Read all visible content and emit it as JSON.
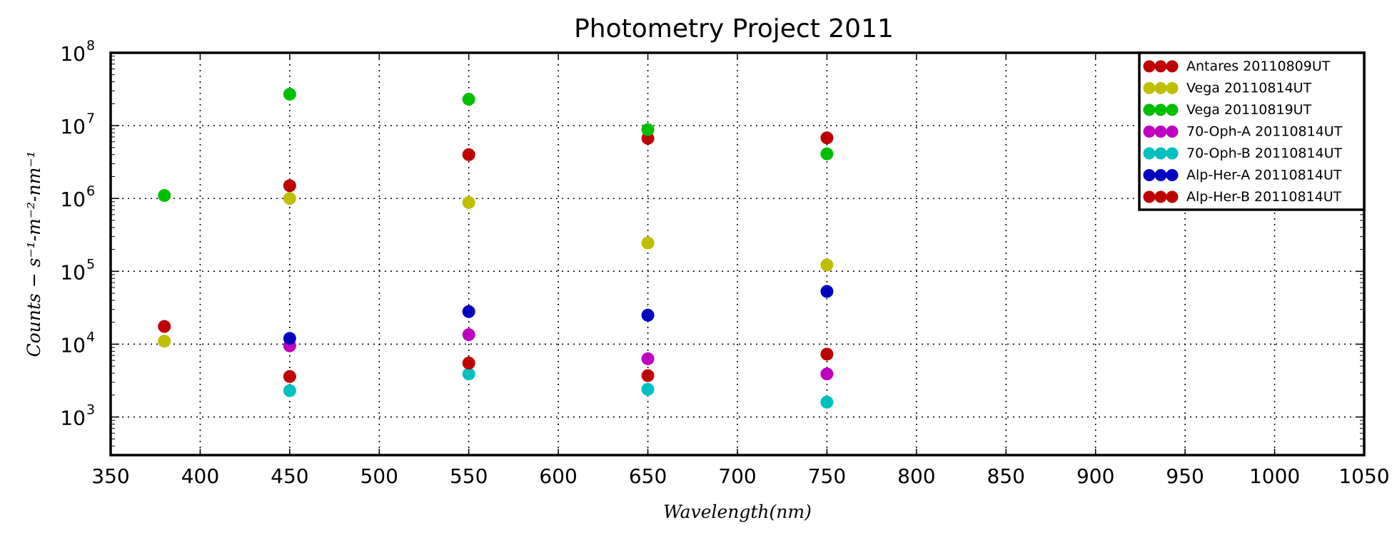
{
  "chart_data": {
    "type": "scatter",
    "title": "Photometry Project 2011",
    "xlabel": "Wavelength(nm)",
    "ylabel": "Counts − s⁻¹-m⁻²-nm⁻¹",
    "xlim": [
      350,
      1050
    ],
    "ylim": [
      300,
      100000000
    ],
    "yscale": "log",
    "grid": true,
    "legend_position": "top-right",
    "x_ticks": [
      "350",
      "400",
      "450",
      "500",
      "550",
      "600",
      "650",
      "700",
      "750",
      "800",
      "850",
      "900",
      "950",
      "1000",
      "1050"
    ],
    "y_ticks": [
      {
        "base": "10",
        "exp": "3"
      },
      {
        "base": "10",
        "exp": "4"
      },
      {
        "base": "10",
        "exp": "5"
      },
      {
        "base": "10",
        "exp": "6"
      },
      {
        "base": "10",
        "exp": "7"
      },
      {
        "base": "10",
        "exp": "8"
      }
    ],
    "series": [
      {
        "name": "Antares 20110809UT",
        "color": "#bf0000",
        "points": [
          [
            380,
            17500
          ],
          [
            450,
            1500000
          ],
          [
            550,
            4000000
          ],
          [
            650,
            6700000
          ],
          [
            750,
            6800000
          ]
        ]
      },
      {
        "name": "Vega 20110814UT",
        "color": "#bfbf00",
        "points": [
          [
            380,
            11000
          ],
          [
            450,
            1000000
          ],
          [
            550,
            880000
          ],
          [
            650,
            245000
          ],
          [
            750,
            122000
          ]
        ]
      },
      {
        "name": "Vega 20110819UT",
        "color": "#00bf00",
        "points": [
          [
            380,
            1100000
          ],
          [
            450,
            27000000
          ],
          [
            550,
            23000000
          ],
          [
            650,
            8800000
          ],
          [
            750,
            4100000
          ]
        ]
      },
      {
        "name": "70-Oph-A 20110814UT",
        "color": "#bf00bf",
        "points": [
          [
            450,
            9500
          ],
          [
            550,
            13500
          ],
          [
            650,
            6300
          ],
          [
            750,
            3900
          ]
        ]
      },
      {
        "name": "70-Oph-B 20110814UT",
        "color": "#00bfbf",
        "points": [
          [
            450,
            2300
          ],
          [
            550,
            3900
          ],
          [
            650,
            2400
          ],
          [
            750,
            1600
          ]
        ]
      },
      {
        "name": "Alp-Her-A 20110814UT",
        "color": "#0000bf",
        "points": [
          [
            450,
            12000
          ],
          [
            550,
            28000
          ],
          [
            650,
            25000
          ],
          [
            750,
            53000
          ]
        ]
      },
      {
        "name": "Alp-Her-B 20110814UT",
        "color": "#bf0000",
        "points": [
          [
            450,
            3600
          ],
          [
            550,
            5500
          ],
          [
            650,
            3700
          ],
          [
            750,
            7300
          ]
        ]
      }
    ]
  }
}
